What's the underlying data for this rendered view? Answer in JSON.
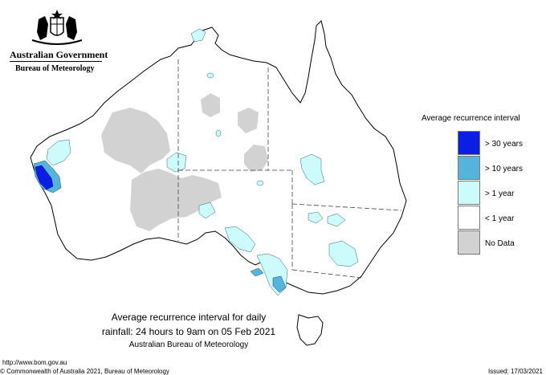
{
  "header": {
    "government": "Australian Government",
    "bureau": "Bureau of Meteorology"
  },
  "legend": {
    "title": "Average recurrence interval",
    "items": [
      {
        "label": "> 30 years",
        "color": "#0a1ee6"
      },
      {
        "label": "> 10 years",
        "color": "#55b4dc"
      },
      {
        "label": "> 1 year",
        "color": "#cdfafa"
      },
      {
        "label": "< 1 year",
        "color": "#ffffff"
      },
      {
        "label": "No Data",
        "color": "#d2d2d2"
      }
    ]
  },
  "caption": {
    "line1": "Average recurrence interval for daily",
    "line2": "rainfall: 24 hours to 9am on 05 Feb 2021",
    "line3": "Australian Bureau of Meteorology"
  },
  "footer": {
    "url": "http://www.bom.gov.au",
    "copyright": "© Commonwealth of Australia 2021, Bureau of Meteorology",
    "issued": "Issued: 17/03/2021"
  },
  "map": {
    "colors": {
      "no_data": "#d2d2d2",
      "over_1yr": "#cdfafa",
      "over_10yr": "#55b4dc",
      "over_30yr": "#0a1ee6",
      "coast": "#000000",
      "border": "#444444"
    }
  }
}
